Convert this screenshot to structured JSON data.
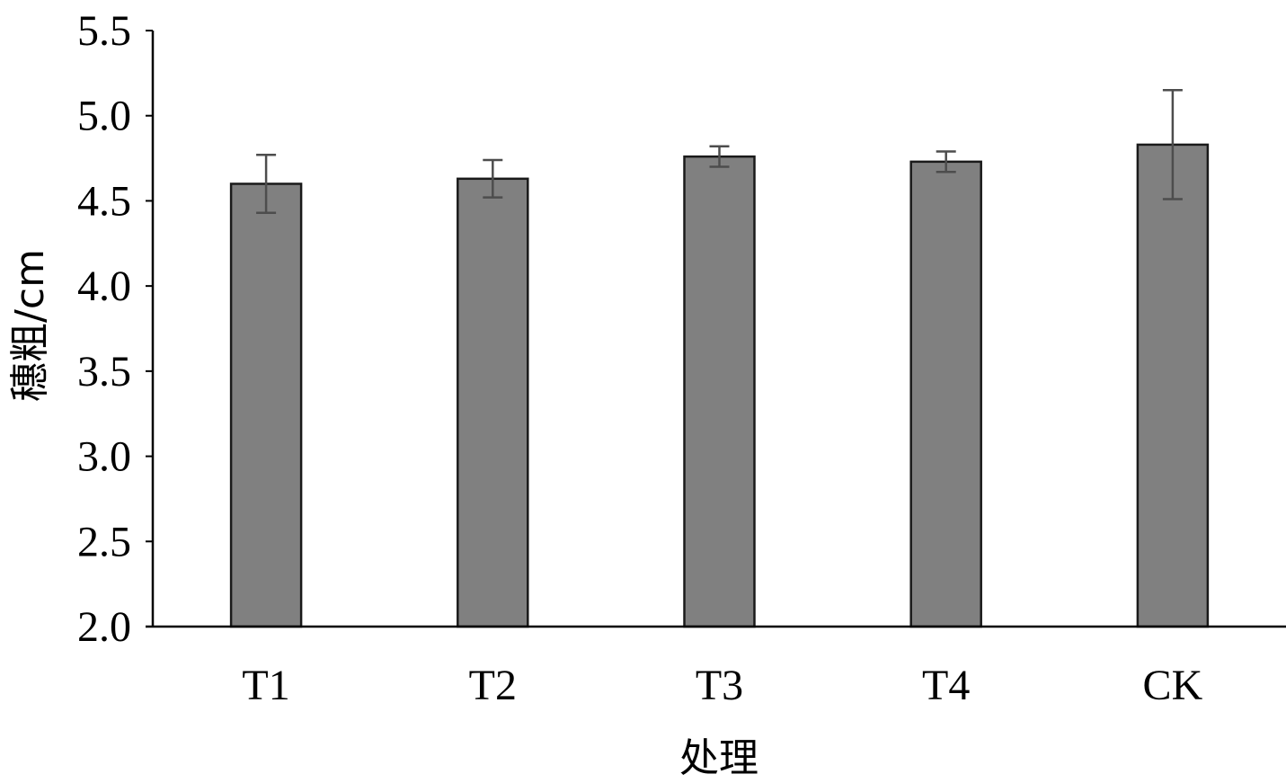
{
  "chart_data": {
    "type": "bar",
    "categories": [
      "T1",
      "T2",
      "T3",
      "T4",
      "CK"
    ],
    "values": [
      4.6,
      4.63,
      4.76,
      4.73,
      4.83
    ],
    "errors": [
      0.17,
      0.11,
      0.06,
      0.06,
      0.32
    ],
    "xlabel": "处理",
    "ylabel": "穗粗/cm",
    "ylim": [
      2.0,
      5.5
    ],
    "yticks": [
      "2.0",
      "2.5",
      "3.0",
      "3.5",
      "4.0",
      "4.5",
      "5.0",
      "5.5"
    ],
    "grid": false,
    "legend": "none",
    "bar_color": "#808080",
    "bar_edge_color": "#1a1a1a",
    "error_bar_color": "#4d4d4d",
    "axis_color": "#000000"
  }
}
